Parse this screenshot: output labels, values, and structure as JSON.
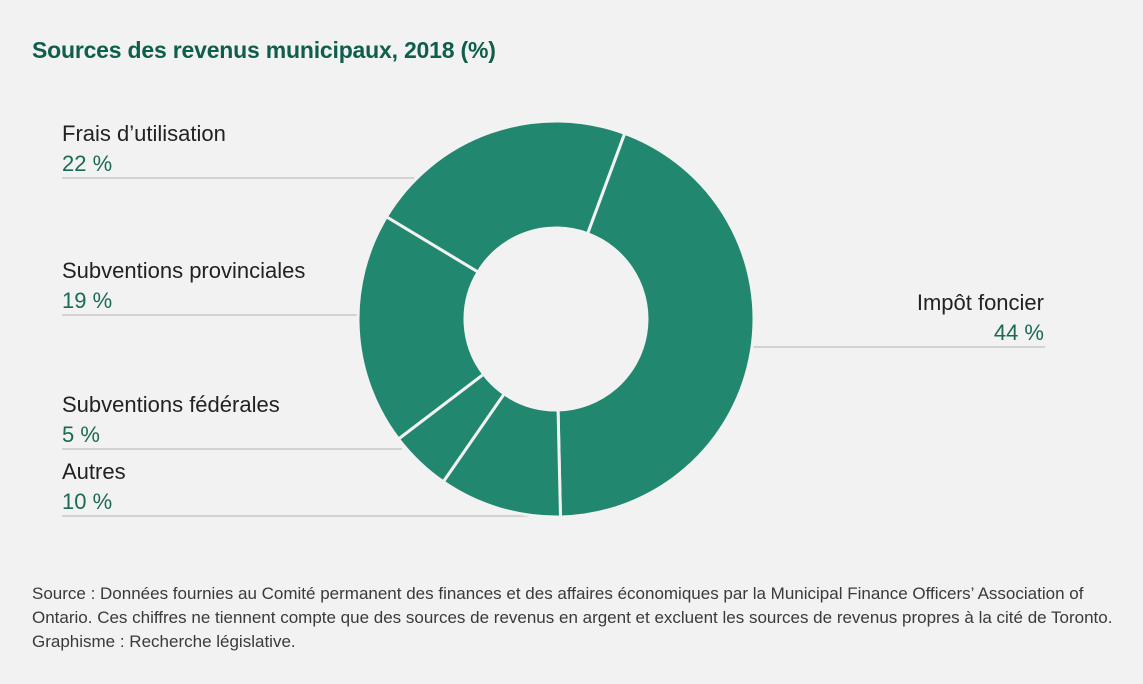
{
  "chart_data": {
    "type": "pie",
    "variant": "donut",
    "title": "Sources des revenus municipaux, 2018 (%)",
    "unit": "%",
    "start_angle_deg": 20.3,
    "direction": "clockwise",
    "slices": [
      {
        "label": "Impôt foncier",
        "value": 44,
        "value_label": "44 %"
      },
      {
        "label": "Autres",
        "value": 10,
        "value_label": "10 %"
      },
      {
        "label": "Subventions fédérales",
        "value": 5,
        "value_label": "5 %"
      },
      {
        "label": "Subventions provinciales",
        "value": 19,
        "value_label": "19 %"
      },
      {
        "label": "Frais d’utilisation",
        "value": 22,
        "value_label": "22 %"
      }
    ],
    "colors": {
      "slice": "#21876f",
      "separator": "#f2f2f2",
      "leader": "#c8c8c8"
    }
  },
  "source": "Source : Données fournies au Comité permanent des finances et des affaires économiques par la Municipal Finance Officers’ Association of Ontario. Ces chiffres ne tiennent compte que des sources de revenus en argent et excluent les sources de revenus propres à la cité de Toronto. Graphisme : Recherche législative."
}
